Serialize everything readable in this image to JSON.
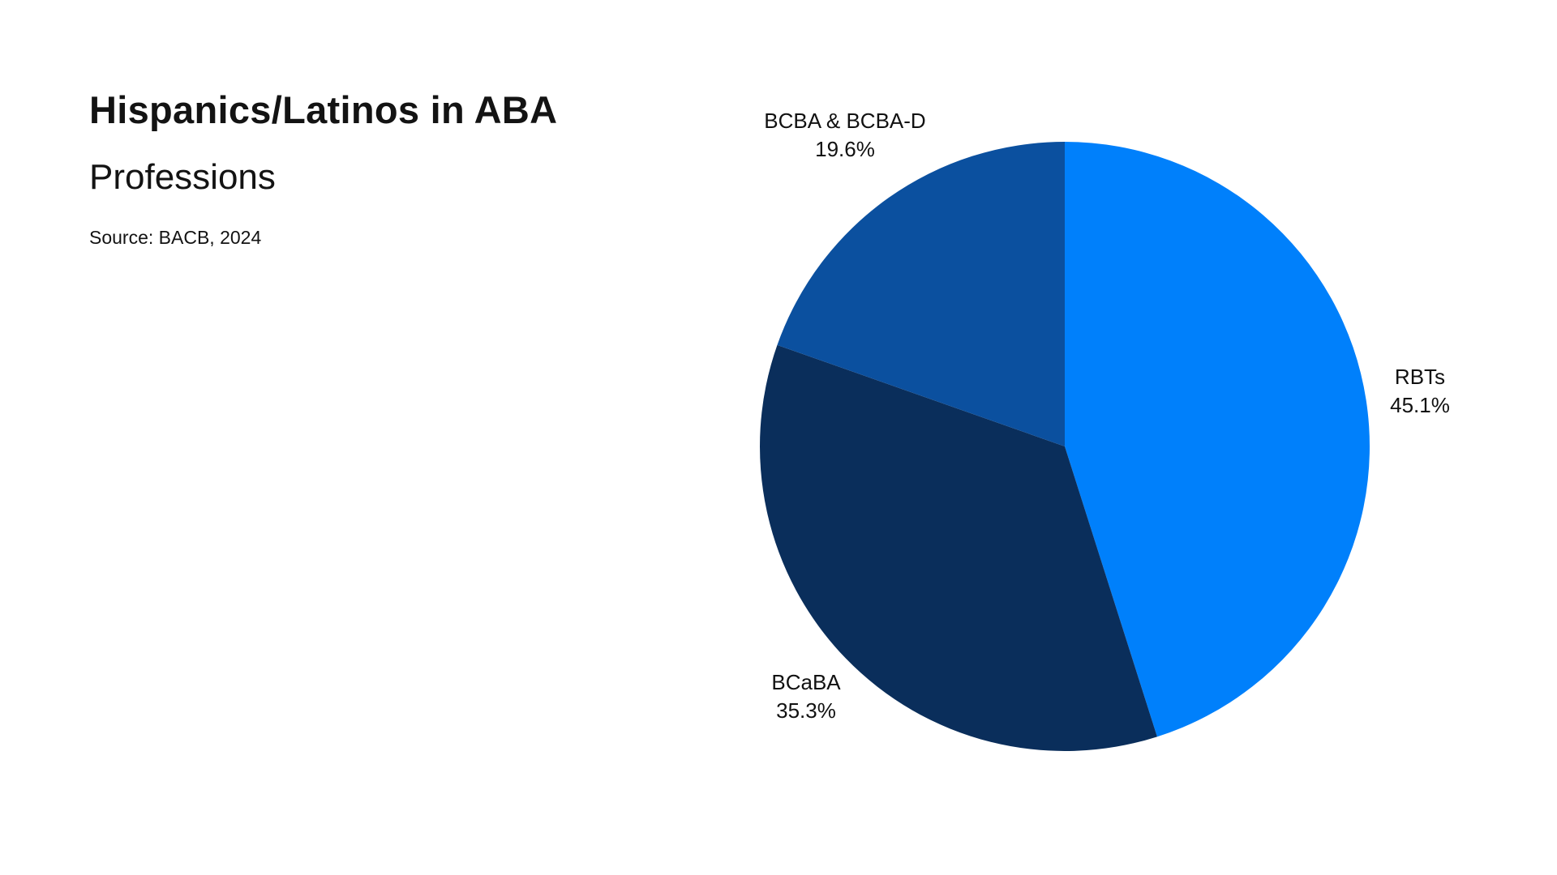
{
  "header": {
    "title": "Hispanics/Latinos in ABA",
    "subtitle": "Professions",
    "source": "Source: BACB, 2024"
  },
  "chart_data": {
    "type": "pie",
    "title": "Hispanics/Latinos in ABA Professions",
    "source": "Source: BACB, 2024",
    "start_angle_deg": 0,
    "direction": "clockwise",
    "legend_position": "none",
    "labels_position": "outside",
    "categories": [
      "RBTs",
      "BCaBA",
      "BCBA & BCBA-D"
    ],
    "values": [
      45.1,
      35.3,
      19.6
    ],
    "slices": [
      {
        "label": "RBTs",
        "value": 45.1,
        "display_value": "45.1%",
        "color": "#0080FB"
      },
      {
        "label": "BCaBA",
        "value": 35.3,
        "display_value": "35.3%",
        "color": "#0A2E5B"
      },
      {
        "label": "BCBA & BCBA-D",
        "value": 19.6,
        "display_value": "19.6%",
        "color": "#0B509F"
      }
    ],
    "colors": {
      "background": "#FFFFFF",
      "text": "#131313"
    }
  }
}
